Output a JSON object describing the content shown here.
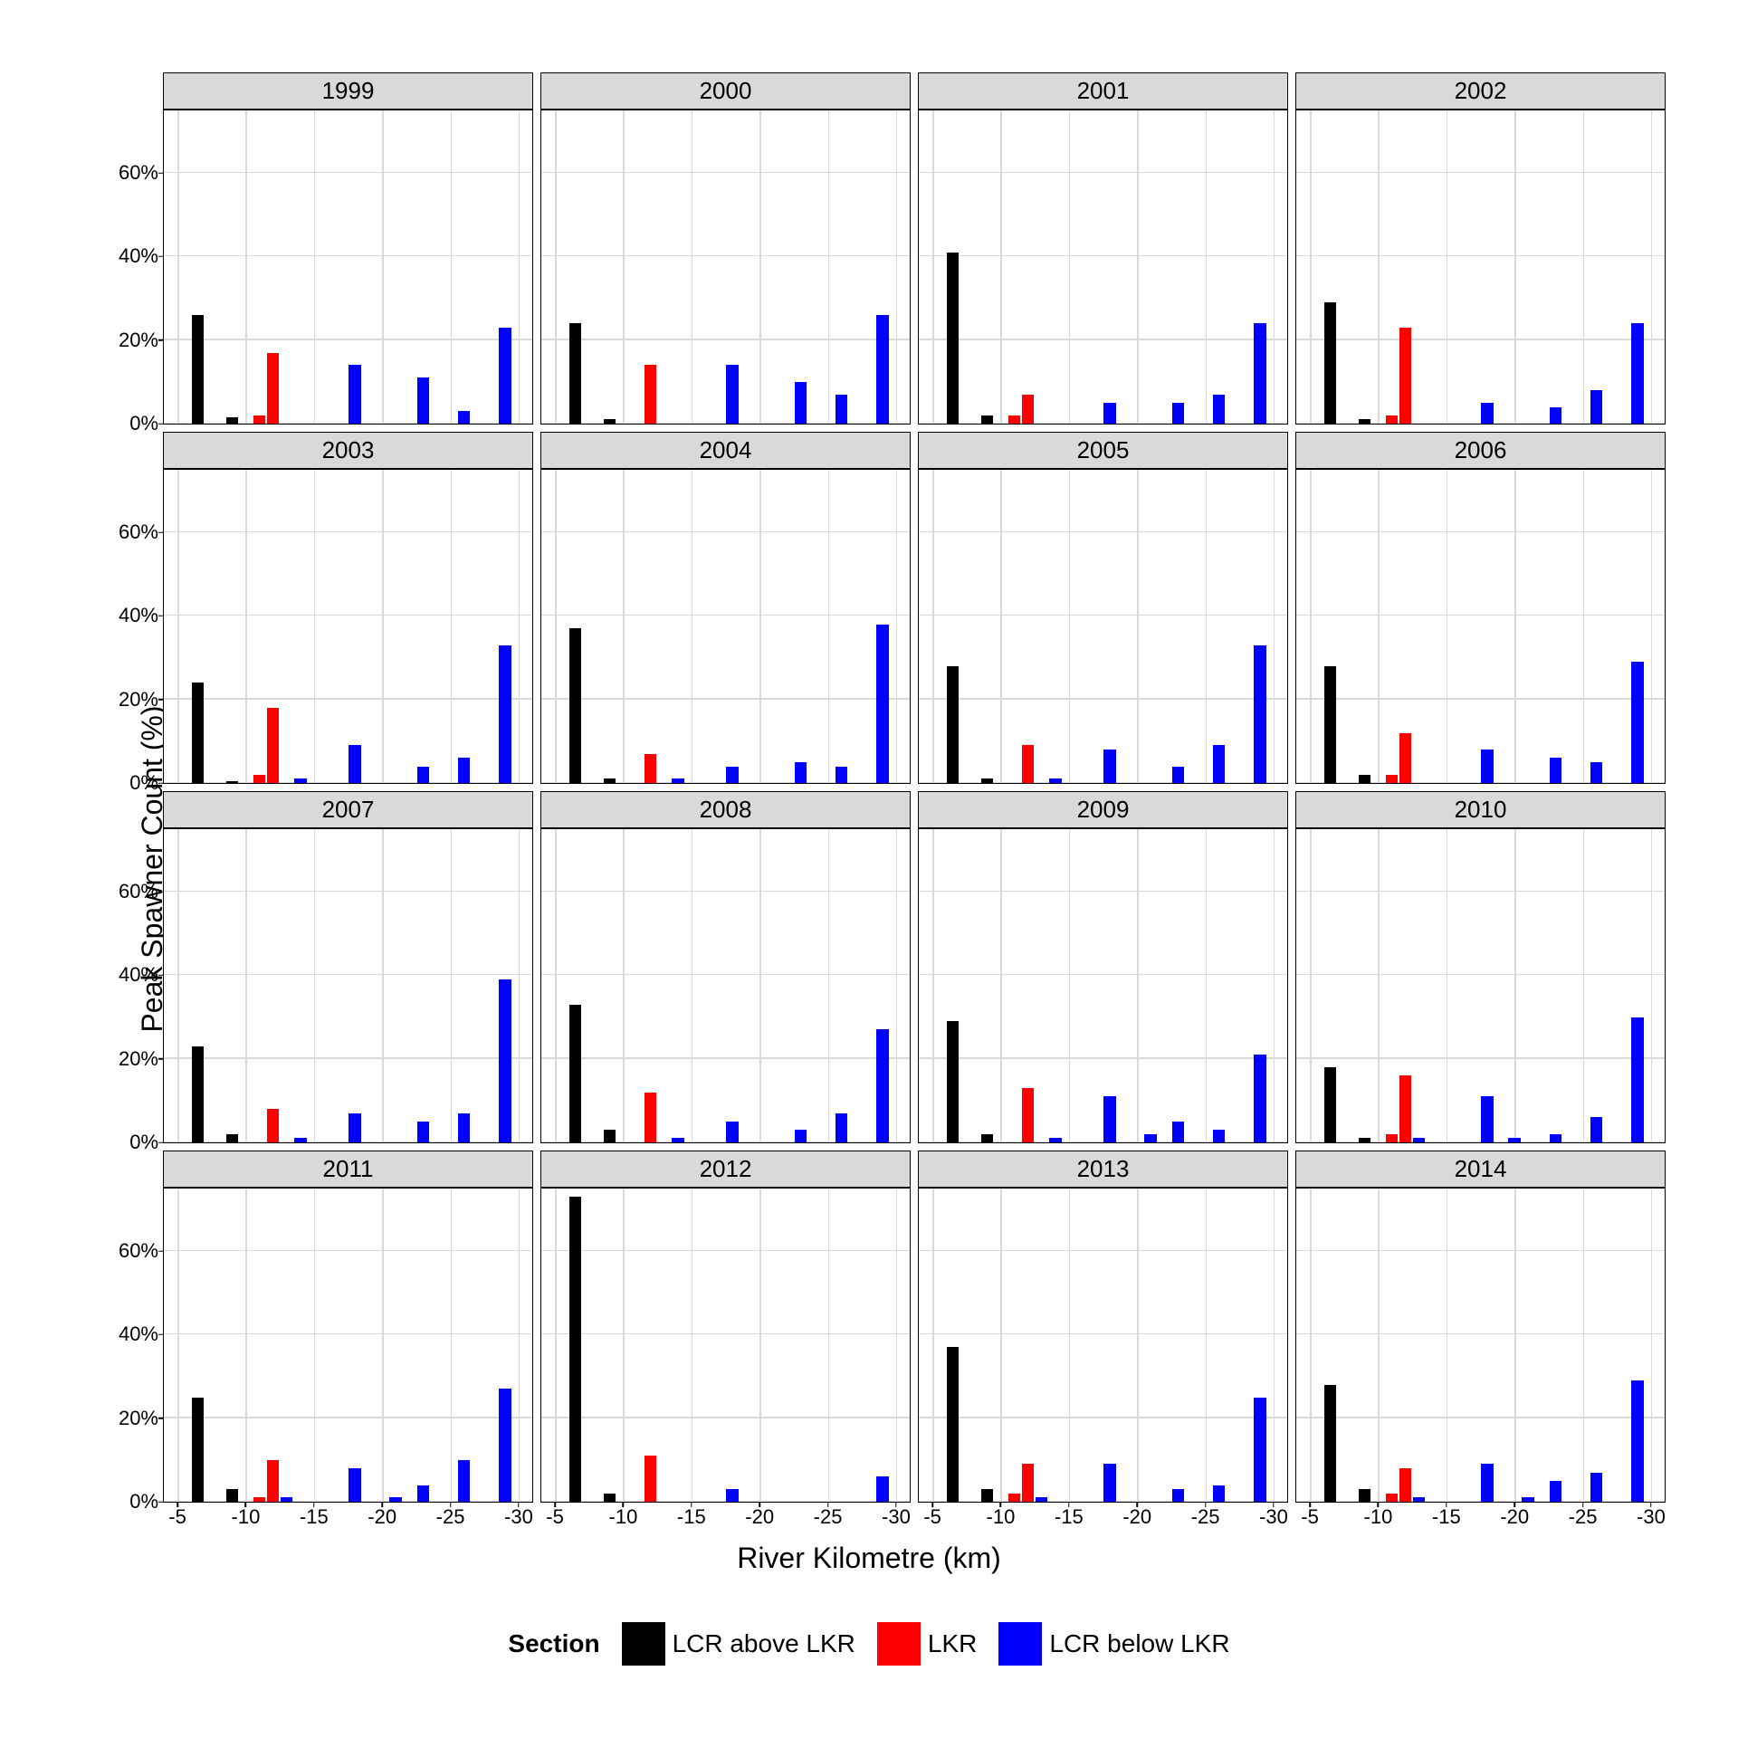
{
  "ylabel": "Peak Spawner Count (%)",
  "xlabel": "River Kilometre (km)",
  "legend_title": "Section",
  "colors": {
    "lcr_above": "#000000",
    "lkr": "#ff0000",
    "lcr_below": "#0000ff",
    "strip_bg": "#d9d9d9",
    "grid": "#d9d9d9",
    "panel_border": "#000000",
    "bg": "#ffffff"
  },
  "series": [
    {
      "key": "lcr_above",
      "label": "LCR above LKR"
    },
    {
      "key": "lkr",
      "label": "LKR"
    },
    {
      "key": "lcr_below",
      "label": "LCR below LKR"
    }
  ],
  "x_domain": [
    -4,
    -31
  ],
  "x_ticks": [
    -5,
    -10,
    -15,
    -20,
    -25,
    -30
  ],
  "y_ticks_default": [
    0,
    20,
    40,
    60
  ],
  "y_max_default": 75,
  "y_ticks_2012": [
    0,
    20,
    40,
    60
  ],
  "y_max_2012": 75,
  "bar_width_km": 0.9,
  "panels": [
    {
      "year": 1999,
      "bars": [
        {
          "x": -6.5,
          "y": 26,
          "s": "lcr_above"
        },
        {
          "x": -9.0,
          "y": 1.5,
          "s": "lcr_above"
        },
        {
          "x": -11.0,
          "y": 2,
          "s": "lkr"
        },
        {
          "x": -12.0,
          "y": 17,
          "s": "lkr"
        },
        {
          "x": -18.0,
          "y": 14,
          "s": "lcr_below"
        },
        {
          "x": -23.0,
          "y": 11,
          "s": "lcr_below"
        },
        {
          "x": -26.0,
          "y": 3,
          "s": "lcr_below"
        },
        {
          "x": -29.0,
          "y": 23,
          "s": "lcr_below"
        }
      ]
    },
    {
      "year": 2000,
      "bars": [
        {
          "x": -6.5,
          "y": 24,
          "s": "lcr_above"
        },
        {
          "x": -9.0,
          "y": 1,
          "s": "lcr_above"
        },
        {
          "x": -12.0,
          "y": 14,
          "s": "lkr"
        },
        {
          "x": -18.0,
          "y": 14,
          "s": "lcr_below"
        },
        {
          "x": -23.0,
          "y": 10,
          "s": "lcr_below"
        },
        {
          "x": -26.0,
          "y": 7,
          "s": "lcr_below"
        },
        {
          "x": -29.0,
          "y": 26,
          "s": "lcr_below"
        }
      ]
    },
    {
      "year": 2001,
      "bars": [
        {
          "x": -6.5,
          "y": 41,
          "s": "lcr_above"
        },
        {
          "x": -9.0,
          "y": 2,
          "s": "lcr_above"
        },
        {
          "x": -11.0,
          "y": 2,
          "s": "lkr"
        },
        {
          "x": -12.0,
          "y": 7,
          "s": "lkr"
        },
        {
          "x": -18.0,
          "y": 5,
          "s": "lcr_below"
        },
        {
          "x": -23.0,
          "y": 5,
          "s": "lcr_below"
        },
        {
          "x": -26.0,
          "y": 7,
          "s": "lcr_below"
        },
        {
          "x": -29.0,
          "y": 24,
          "s": "lcr_below"
        }
      ]
    },
    {
      "year": 2002,
      "bars": [
        {
          "x": -6.5,
          "y": 29,
          "s": "lcr_above"
        },
        {
          "x": -9.0,
          "y": 1,
          "s": "lcr_above"
        },
        {
          "x": -11.0,
          "y": 2,
          "s": "lkr"
        },
        {
          "x": -12.0,
          "y": 23,
          "s": "lkr"
        },
        {
          "x": -18.0,
          "y": 5,
          "s": "lcr_below"
        },
        {
          "x": -23.0,
          "y": 4,
          "s": "lcr_below"
        },
        {
          "x": -26.0,
          "y": 8,
          "s": "lcr_below"
        },
        {
          "x": -29.0,
          "y": 24,
          "s": "lcr_below"
        }
      ]
    },
    {
      "year": 2003,
      "bars": [
        {
          "x": -6.5,
          "y": 24,
          "s": "lcr_above"
        },
        {
          "x": -9.0,
          "y": 0.5,
          "s": "lcr_above"
        },
        {
          "x": -11.0,
          "y": 2,
          "s": "lkr"
        },
        {
          "x": -12.0,
          "y": 18,
          "s": "lkr"
        },
        {
          "x": -14.0,
          "y": 1,
          "s": "lcr_below"
        },
        {
          "x": -18.0,
          "y": 9,
          "s": "lcr_below"
        },
        {
          "x": -23.0,
          "y": 4,
          "s": "lcr_below"
        },
        {
          "x": -26.0,
          "y": 6,
          "s": "lcr_below"
        },
        {
          "x": -29.0,
          "y": 33,
          "s": "lcr_below"
        }
      ]
    },
    {
      "year": 2004,
      "bars": [
        {
          "x": -6.5,
          "y": 37,
          "s": "lcr_above"
        },
        {
          "x": -9.0,
          "y": 1,
          "s": "lcr_above"
        },
        {
          "x": -12.0,
          "y": 7,
          "s": "lkr"
        },
        {
          "x": -14.0,
          "y": 1,
          "s": "lcr_below"
        },
        {
          "x": -18.0,
          "y": 4,
          "s": "lcr_below"
        },
        {
          "x": -23.0,
          "y": 5,
          "s": "lcr_below"
        },
        {
          "x": -26.0,
          "y": 4,
          "s": "lcr_below"
        },
        {
          "x": -29.0,
          "y": 38,
          "s": "lcr_below"
        }
      ]
    },
    {
      "year": 2005,
      "bars": [
        {
          "x": -6.5,
          "y": 28,
          "s": "lcr_above"
        },
        {
          "x": -9.0,
          "y": 1,
          "s": "lcr_above"
        },
        {
          "x": -12.0,
          "y": 9,
          "s": "lkr"
        },
        {
          "x": -14.0,
          "y": 1,
          "s": "lcr_below"
        },
        {
          "x": -18.0,
          "y": 8,
          "s": "lcr_below"
        },
        {
          "x": -23.0,
          "y": 4,
          "s": "lcr_below"
        },
        {
          "x": -26.0,
          "y": 9,
          "s": "lcr_below"
        },
        {
          "x": -29.0,
          "y": 33,
          "s": "lcr_below"
        }
      ]
    },
    {
      "year": 2006,
      "bars": [
        {
          "x": -6.5,
          "y": 28,
          "s": "lcr_above"
        },
        {
          "x": -9.0,
          "y": 2,
          "s": "lcr_above"
        },
        {
          "x": -11.0,
          "y": 2,
          "s": "lkr"
        },
        {
          "x": -12.0,
          "y": 12,
          "s": "lkr"
        },
        {
          "x": -18.0,
          "y": 8,
          "s": "lcr_below"
        },
        {
          "x": -23.0,
          "y": 6,
          "s": "lcr_below"
        },
        {
          "x": -26.0,
          "y": 5,
          "s": "lcr_below"
        },
        {
          "x": -29.0,
          "y": 29,
          "s": "lcr_below"
        }
      ]
    },
    {
      "year": 2007,
      "bars": [
        {
          "x": -6.5,
          "y": 23,
          "s": "lcr_above"
        },
        {
          "x": -9.0,
          "y": 2,
          "s": "lcr_above"
        },
        {
          "x": -12.0,
          "y": 8,
          "s": "lkr"
        },
        {
          "x": -14.0,
          "y": 1,
          "s": "lcr_below"
        },
        {
          "x": -18.0,
          "y": 7,
          "s": "lcr_below"
        },
        {
          "x": -23.0,
          "y": 5,
          "s": "lcr_below"
        },
        {
          "x": -26.0,
          "y": 7,
          "s": "lcr_below"
        },
        {
          "x": -29.0,
          "y": 39,
          "s": "lcr_below"
        }
      ]
    },
    {
      "year": 2008,
      "bars": [
        {
          "x": -6.5,
          "y": 33,
          "s": "lcr_above"
        },
        {
          "x": -9.0,
          "y": 3,
          "s": "lcr_above"
        },
        {
          "x": -12.0,
          "y": 12,
          "s": "lkr"
        },
        {
          "x": -14.0,
          "y": 1,
          "s": "lcr_below"
        },
        {
          "x": -18.0,
          "y": 5,
          "s": "lcr_below"
        },
        {
          "x": -23.0,
          "y": 3,
          "s": "lcr_below"
        },
        {
          "x": -26.0,
          "y": 7,
          "s": "lcr_below"
        },
        {
          "x": -29.0,
          "y": 27,
          "s": "lcr_below"
        }
      ]
    },
    {
      "year": 2009,
      "bars": [
        {
          "x": -6.5,
          "y": 29,
          "s": "lcr_above"
        },
        {
          "x": -9.0,
          "y": 2,
          "s": "lcr_above"
        },
        {
          "x": -12.0,
          "y": 13,
          "s": "lkr"
        },
        {
          "x": -14.0,
          "y": 1,
          "s": "lcr_below"
        },
        {
          "x": -18.0,
          "y": 11,
          "s": "lcr_below"
        },
        {
          "x": -21.0,
          "y": 2,
          "s": "lcr_below"
        },
        {
          "x": -23.0,
          "y": 5,
          "s": "lcr_below"
        },
        {
          "x": -26.0,
          "y": 3,
          "s": "lcr_below"
        },
        {
          "x": -29.0,
          "y": 21,
          "s": "lcr_below"
        }
      ]
    },
    {
      "year": 2010,
      "bars": [
        {
          "x": -6.5,
          "y": 18,
          "s": "lcr_above"
        },
        {
          "x": -9.0,
          "y": 1,
          "s": "lcr_above"
        },
        {
          "x": -11.0,
          "y": 2,
          "s": "lkr"
        },
        {
          "x": -12.0,
          "y": 16,
          "s": "lkr"
        },
        {
          "x": -13.0,
          "y": 1,
          "s": "lcr_below"
        },
        {
          "x": -18.0,
          "y": 11,
          "s": "lcr_below"
        },
        {
          "x": -20.0,
          "y": 1,
          "s": "lcr_below"
        },
        {
          "x": -23.0,
          "y": 2,
          "s": "lcr_below"
        },
        {
          "x": -26.0,
          "y": 6,
          "s": "lcr_below"
        },
        {
          "x": -29.0,
          "y": 30,
          "s": "lcr_below"
        }
      ]
    },
    {
      "year": 2011,
      "bars": [
        {
          "x": -6.5,
          "y": 25,
          "s": "lcr_above"
        },
        {
          "x": -9.0,
          "y": 3,
          "s": "lcr_above"
        },
        {
          "x": -11.0,
          "y": 1,
          "s": "lkr"
        },
        {
          "x": -12.0,
          "y": 10,
          "s": "lkr"
        },
        {
          "x": -13.0,
          "y": 1,
          "s": "lcr_below"
        },
        {
          "x": -18.0,
          "y": 8,
          "s": "lcr_below"
        },
        {
          "x": -21.0,
          "y": 1,
          "s": "lcr_below"
        },
        {
          "x": -23.0,
          "y": 4,
          "s": "lcr_below"
        },
        {
          "x": -26.0,
          "y": 10,
          "s": "lcr_below"
        },
        {
          "x": -29.0,
          "y": 27,
          "s": "lcr_below"
        }
      ]
    },
    {
      "year": 2012,
      "bars": [
        {
          "x": -6.5,
          "y": 73,
          "s": "lcr_above"
        },
        {
          "x": -9.0,
          "y": 2,
          "s": "lcr_above"
        },
        {
          "x": -12.0,
          "y": 11,
          "s": "lkr"
        },
        {
          "x": -18.0,
          "y": 3,
          "s": "lcr_below"
        },
        {
          "x": -29.0,
          "y": 6,
          "s": "lcr_below"
        }
      ]
    },
    {
      "year": 2013,
      "bars": [
        {
          "x": -6.5,
          "y": 37,
          "s": "lcr_above"
        },
        {
          "x": -9.0,
          "y": 3,
          "s": "lcr_above"
        },
        {
          "x": -11.0,
          "y": 2,
          "s": "lkr"
        },
        {
          "x": -12.0,
          "y": 9,
          "s": "lkr"
        },
        {
          "x": -13.0,
          "y": 1,
          "s": "lcr_below"
        },
        {
          "x": -18.0,
          "y": 9,
          "s": "lcr_below"
        },
        {
          "x": -23.0,
          "y": 3,
          "s": "lcr_below"
        },
        {
          "x": -26.0,
          "y": 4,
          "s": "lcr_below"
        },
        {
          "x": -29.0,
          "y": 25,
          "s": "lcr_below"
        }
      ]
    },
    {
      "year": 2014,
      "bars": [
        {
          "x": -6.5,
          "y": 28,
          "s": "lcr_above"
        },
        {
          "x": -9.0,
          "y": 3,
          "s": "lcr_above"
        },
        {
          "x": -11.0,
          "y": 2,
          "s": "lkr"
        },
        {
          "x": -12.0,
          "y": 8,
          "s": "lkr"
        },
        {
          "x": -13.0,
          "y": 1,
          "s": "lcr_below"
        },
        {
          "x": -18.0,
          "y": 9,
          "s": "lcr_below"
        },
        {
          "x": -21.0,
          "y": 1,
          "s": "lcr_below"
        },
        {
          "x": -23.0,
          "y": 5,
          "s": "lcr_below"
        },
        {
          "x": -26.0,
          "y": 7,
          "s": "lcr_below"
        },
        {
          "x": -29.0,
          "y": 29,
          "s": "lcr_below"
        }
      ]
    }
  ]
}
